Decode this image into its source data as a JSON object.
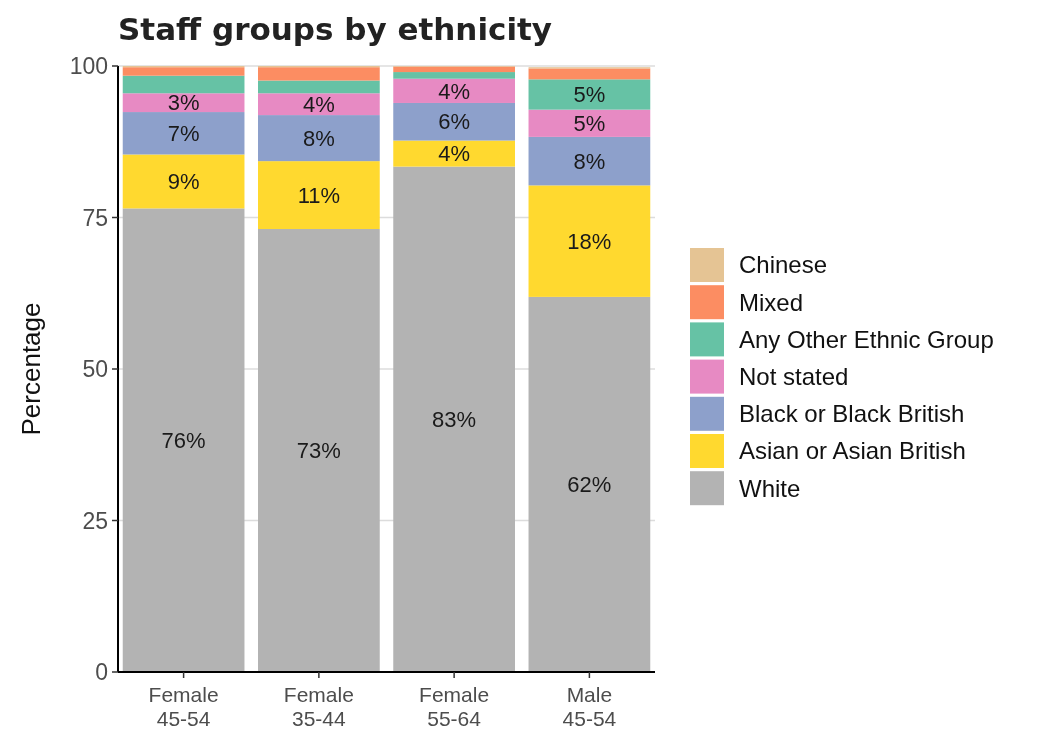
{
  "chart_data": {
    "type": "bar",
    "stacked": true,
    "title": "Staff groups by ethnicity",
    "ylabel": "Percentage",
    "categories": [
      "Female 45-54",
      "Female 35-44",
      "Female 55-64",
      "Male 45-54"
    ],
    "series": [
      {
        "name": "White",
        "color": "#b3b3b3",
        "values": [
          76.5,
          73.1,
          83.4,
          61.9
        ],
        "value_labels": [
          "76%",
          "73%",
          "83%",
          "62%"
        ]
      },
      {
        "name": "Asian or Asian British",
        "color": "#ffd92f",
        "values": [
          8.9,
          11.2,
          4.3,
          18.4
        ],
        "value_labels": [
          "9%",
          "11%",
          "4%",
          "18%"
        ]
      },
      {
        "name": "Black or Black British",
        "color": "#8da0cb",
        "values": [
          7.0,
          7.6,
          6.2,
          8.0
        ],
        "value_labels": [
          "7%",
          "8%",
          "6%",
          "8%"
        ]
      },
      {
        "name": "Not stated",
        "color": "#e78ac3",
        "values": [
          3.1,
          3.6,
          4.0,
          4.5
        ],
        "value_labels": [
          "3%",
          "4%",
          "4%",
          "5%"
        ]
      },
      {
        "name": "Any Other Ethnic Group",
        "color": "#66c2a5",
        "values": [
          2.9,
          2.1,
          1.1,
          5.0
        ],
        "value_labels": [
          null,
          null,
          null,
          "5%"
        ]
      },
      {
        "name": "Mixed",
        "color": "#fc8d62",
        "values": [
          1.4,
          2.2,
          0.9,
          1.8
        ],
        "value_labels": [
          null,
          null,
          null,
          null
        ]
      },
      {
        "name": "Chinese",
        "color": "#e5c494",
        "values": [
          0.2,
          0.2,
          0.1,
          0.2
        ],
        "value_labels": [
          null,
          null,
          null,
          null
        ]
      }
    ],
    "ylim": [
      0,
      100
    ],
    "yticks": [
      0,
      25,
      50,
      75,
      100
    ],
    "grid": "y",
    "legend": "right"
  }
}
